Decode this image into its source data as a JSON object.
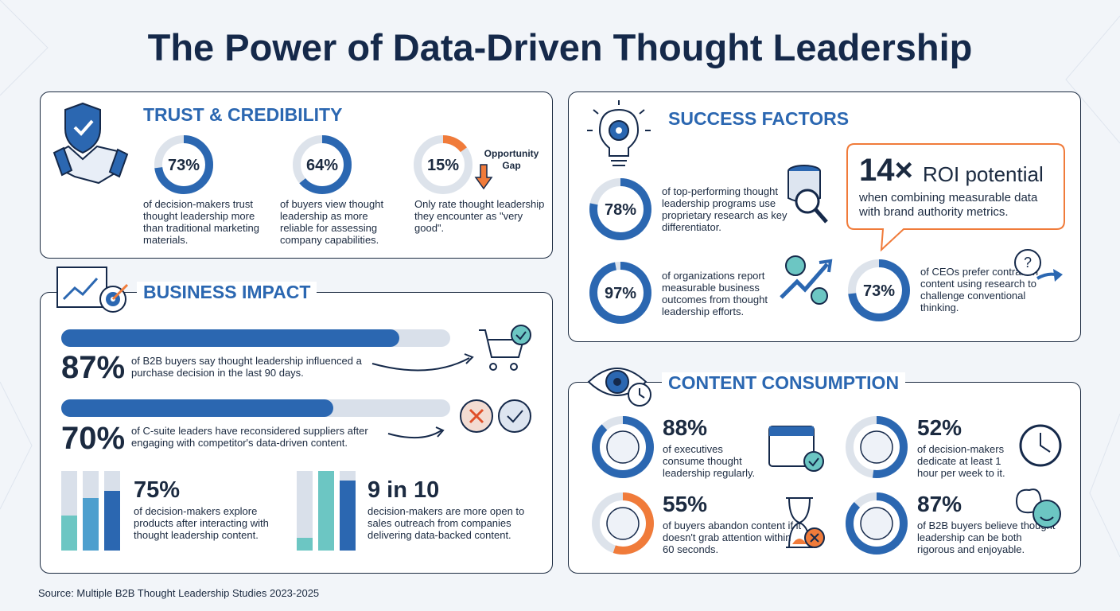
{
  "title": "The Power of Data-Driven Thought Leadership",
  "trust": {
    "heading": "TRUST & CREDIBILITY",
    "stats": [
      {
        "percent": {
          "value": 73,
          "label": "73%"
        },
        "text": "of decision-makers trust thought leadership more than traditional marketing materials."
      },
      {
        "percent": {
          "value": 64,
          "label": "64%"
        },
        "text": "of buyers view thought leadership as more reliable for assessing company capabilities."
      },
      {
        "percent": {
          "value": 15,
          "label": "15%"
        },
        "text": "Only rate thought leadership they encounter as \"very good\"."
      }
    ],
    "callout": "Opportunity Gap"
  },
  "business_impact": {
    "heading": "BUSINESS IMPACT",
    "bars": [
      {
        "percent": {
          "value": 87,
          "label": "87%"
        },
        "text": "of B2B buyers say thought leadership influenced a purchase decision in the last 90 days."
      },
      {
        "percent": {
          "value": 70,
          "label": "70%"
        },
        "text": "of C-suite leaders have reconsidered suppliers after engaging with competitor's data-driven content."
      }
    ],
    "stats": [
      {
        "figure": "75%",
        "text": "of decision-makers explore products after interacting with thought leadership content."
      },
      {
        "figure": "9 in 10",
        "text": "decision-makers are more open to sales outreach from companies delivering data-backed content."
      }
    ]
  },
  "success_factors": {
    "heading": "SUCCESS FACTORS",
    "stats": [
      {
        "percent": {
          "value": 78,
          "label": "78%"
        },
        "text": "of top-performing thought leadership programs use proprietary research as key differentiator."
      },
      {
        "percent": {
          "value": 97,
          "label": "97%"
        },
        "text": "of organizations report measurable business outcomes from thought leadership efforts."
      },
      {
        "percent": {
          "value": 73,
          "label": "73%"
        },
        "text": "of CEOs prefer contrarian content using research to challenge conventional thinking."
      }
    ],
    "roi": {
      "figure": "14×",
      "headline": "ROI potential",
      "text": "when combining measurable data with brand authority metrics."
    }
  },
  "content_consumption": {
    "heading": "CONTENT CONSUMPTION",
    "stats": [
      {
        "percent": {
          "value": 88,
          "label": "88%"
        },
        "text": "of executives consume thought leadership regularly."
      },
      {
        "percent": {
          "value": 52,
          "label": "52%"
        },
        "text": "of decision-makers dedicate at least 1 hour per week to it."
      },
      {
        "percent": {
          "value": 55,
          "label": "55%"
        },
        "text": "of buyers abandon content if it doesn't grab attention within 60 seconds."
      },
      {
        "percent": {
          "value": 87,
          "label": "87%"
        },
        "text": "of B2B buyers believe thought leadership can be both rigorous and enjoyable."
      }
    ]
  },
  "source": "Source: Multiple B2B Thought Leadership Studies 2023-2025"
}
